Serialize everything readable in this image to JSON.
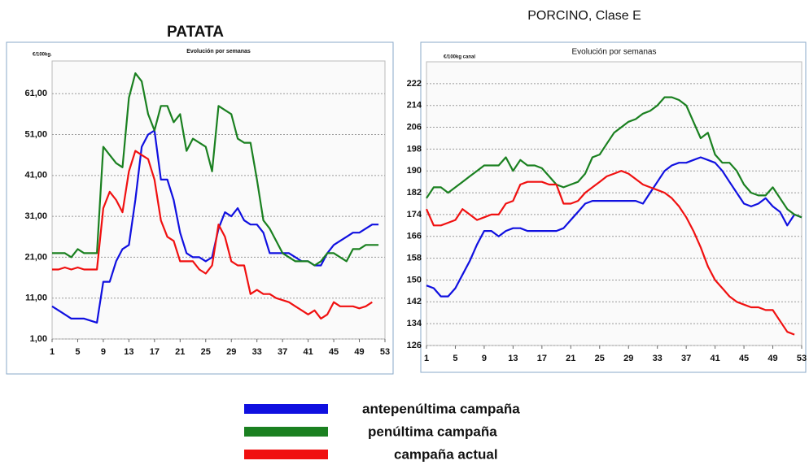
{
  "chart_data": [
    {
      "type": "line",
      "title": "PATATA",
      "subtitle": "Evolución por semanas",
      "y_label": "€/100kg.",
      "x": [
        1,
        2,
        3,
        4,
        5,
        6,
        7,
        8,
        9,
        10,
        11,
        12,
        13,
        14,
        15,
        16,
        17,
        18,
        19,
        20,
        21,
        22,
        23,
        24,
        25,
        26,
        27,
        28,
        29,
        30,
        31,
        32,
        33,
        34,
        35,
        36,
        37,
        38,
        39,
        40,
        41,
        42,
        43,
        44,
        45,
        46,
        47,
        48,
        49,
        50,
        51,
        52,
        53
      ],
      "xlim": [
        1,
        53
      ],
      "xticks": [
        1,
        5,
        9,
        13,
        17,
        21,
        25,
        29,
        33,
        37,
        41,
        45,
        49,
        53
      ],
      "ylim": [
        1,
        69
      ],
      "yticks": [
        {
          "value": 1,
          "label": "1,00"
        },
        {
          "value": 11,
          "label": "11,00"
        },
        {
          "value": 21,
          "label": "21,00"
        },
        {
          "value": 31,
          "label": "31,00"
        },
        {
          "value": 41,
          "label": "41,00"
        },
        {
          "value": 51,
          "label": "51,00"
        },
        {
          "value": 61,
          "label": "61,00"
        }
      ],
      "grid": true,
      "series": [
        {
          "color": "#1010e0",
          "values": [
            9,
            8,
            7,
            6,
            6,
            6,
            5.5,
            5,
            15,
            15,
            20,
            23,
            24,
            35,
            48,
            51,
            52,
            40,
            40,
            35,
            27,
            22,
            21,
            21,
            20,
            21,
            28,
            32,
            31,
            33,
            30,
            29,
            29,
            27,
            22,
            22,
            22,
            22,
            21,
            20,
            20,
            19,
            19,
            22,
            24,
            25,
            26,
            27,
            27,
            28,
            29,
            29,
            null
          ]
        },
        {
          "color": "#1a8020",
          "values": [
            22,
            22,
            22,
            21,
            23,
            22,
            22,
            22,
            48,
            46,
            44,
            43,
            60,
            66,
            64,
            56,
            52,
            58,
            58,
            54,
            56,
            47,
            50,
            49,
            48,
            42,
            58,
            57,
            56,
            50,
            49,
            49,
            40,
            30,
            28,
            25,
            22,
            21,
            20,
            20,
            20,
            19,
            20,
            22,
            22,
            21,
            20,
            23,
            23,
            24,
            24,
            24,
            null
          ]
        },
        {
          "color": "#f01010",
          "values": [
            18,
            18,
            18.5,
            18,
            18.5,
            18,
            18,
            18,
            33,
            37,
            35,
            32,
            42,
            47,
            46,
            45,
            40,
            30,
            26,
            25,
            20,
            20,
            20,
            18,
            17,
            19,
            29,
            26,
            20,
            19,
            19,
            12,
            13,
            12,
            12,
            11,
            10.5,
            10,
            9,
            8,
            7,
            8,
            6,
            7,
            10,
            9,
            9,
            9,
            8.5,
            9,
            10,
            null,
            null
          ]
        }
      ]
    },
    {
      "type": "line",
      "title": "PORCINO, Clase E",
      "subtitle": "Evolución por semanas",
      "y_label": "€/100kg canal",
      "x": [
        1,
        2,
        3,
        4,
        5,
        6,
        7,
        8,
        9,
        10,
        11,
        12,
        13,
        14,
        15,
        16,
        17,
        18,
        19,
        20,
        21,
        22,
        23,
        24,
        25,
        26,
        27,
        28,
        29,
        30,
        31,
        32,
        33,
        34,
        35,
        36,
        37,
        38,
        39,
        40,
        41,
        42,
        43,
        44,
        45,
        46,
        47,
        48,
        49,
        50,
        51,
        52,
        53
      ],
      "xlim": [
        1,
        53
      ],
      "xticks": [
        1,
        5,
        9,
        13,
        17,
        21,
        25,
        29,
        33,
        37,
        41,
        45,
        49,
        53
      ],
      "ylim": [
        126,
        230
      ],
      "yticks": [
        126,
        134,
        142,
        150,
        158,
        166,
        174,
        182,
        190,
        198,
        206,
        214,
        222
      ],
      "grid": true,
      "series": [
        {
          "color": "#1010e0",
          "values": [
            148,
            147,
            144,
            144,
            147,
            152,
            157,
            163,
            168,
            168,
            166,
            168,
            169,
            169,
            168,
            168,
            168,
            168,
            168,
            169,
            172,
            175,
            178,
            179,
            179,
            179,
            179,
            179,
            179,
            179,
            178,
            182,
            186,
            190,
            192,
            193,
            193,
            194,
            195,
            194,
            193,
            190,
            186,
            182,
            178,
            177,
            178,
            180,
            177,
            175,
            170,
            174,
            173
          ]
        },
        {
          "color": "#1a8020",
          "values": [
            180,
            184,
            184,
            182,
            184,
            186,
            188,
            190,
            192,
            192,
            192,
            195,
            190,
            194,
            192,
            192,
            191,
            188,
            185,
            184,
            185,
            186,
            189,
            195,
            196,
            200,
            204,
            206,
            208,
            209,
            211,
            212,
            214,
            217,
            217,
            216,
            214,
            208,
            202,
            204,
            196,
            193,
            193,
            190,
            185,
            182,
            181,
            181,
            184,
            180,
            176,
            174,
            173
          ]
        },
        {
          "color": "#f01010",
          "values": [
            176,
            170,
            170,
            171,
            172,
            176,
            174,
            172,
            173,
            174,
            174,
            178,
            179,
            185,
            186,
            186,
            186,
            185,
            185,
            178,
            178,
            179,
            182,
            184,
            186,
            188,
            189,
            190,
            189,
            187,
            185,
            184,
            183,
            182,
            180,
            177,
            173,
            168,
            162,
            155,
            150,
            147,
            144,
            142,
            141,
            140,
            140,
            139,
            139,
            135,
            131,
            130,
            null
          ]
        }
      ]
    }
  ],
  "legend": [
    {
      "name": "antepenúltima campaña",
      "color": "#1010e0"
    },
    {
      "name": "penúltima campaña",
      "color": "#1a8020"
    },
    {
      "name": "campaña actual",
      "color": "#f01010"
    }
  ]
}
